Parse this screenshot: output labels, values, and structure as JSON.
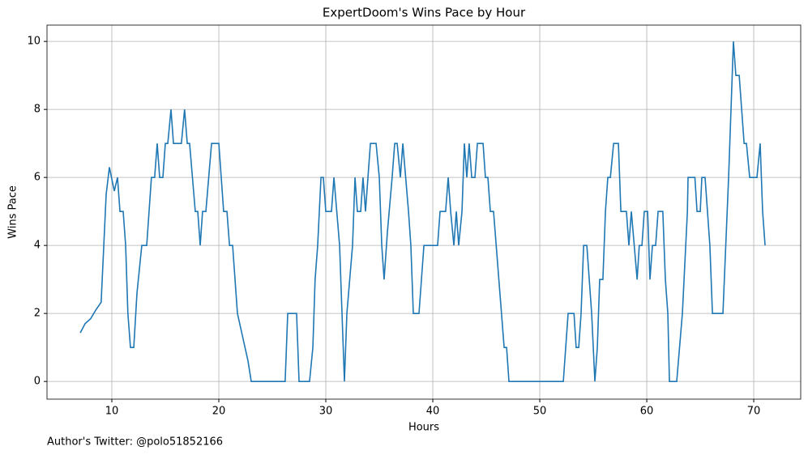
{
  "chart_data": {
    "type": "line",
    "title": "ExpertDoom's Wins Pace by Hour",
    "xlabel": "Hours",
    "ylabel": "Wins Pace",
    "footnote": "Author's Twitter: @polo51852166",
    "xlim": [
      3.94,
      74.39
    ],
    "ylim": [
      -0.52,
      10.48
    ],
    "xticks": [
      10,
      20,
      30,
      40,
      50,
      60,
      70
    ],
    "yticks": [
      0,
      2,
      4,
      6,
      8,
      10
    ],
    "grid": true,
    "x": [
      7.05,
      7.5,
      8.03,
      8.5,
      9.0,
      9.47,
      9.77,
      10.23,
      10.53,
      10.76,
      11.06,
      11.29,
      11.5,
      11.74,
      12.05,
      12.35,
      12.8,
      13.26,
      13.7,
      14.0,
      14.24,
      14.47,
      14.77,
      15.0,
      15.23,
      15.53,
      15.76,
      16.5,
      16.8,
      17.05,
      17.27,
      17.8,
      18.03,
      18.26,
      18.48,
      18.79,
      19.32,
      20.0,
      20.45,
      20.76,
      21.0,
      21.29,
      21.74,
      22.73,
      23.03,
      26.2,
      26.44,
      27.27,
      27.5,
      28.48,
      28.79,
      29.0,
      29.24,
      29.55,
      29.77,
      30.0,
      30.53,
      30.76,
      31.29,
      31.74,
      31.97,
      32.5,
      32.73,
      32.95,
      33.26,
      33.48,
      33.71,
      34.17,
      34.7,
      35.0,
      35.23,
      35.45,
      35.76,
      36.2,
      36.44,
      36.67,
      36.97,
      37.2,
      37.73,
      37.95,
      38.18,
      38.71,
      38.94,
      39.17,
      40.45,
      40.68,
      41.2,
      41.44,
      41.67,
      41.97,
      42.2,
      42.42,
      42.73,
      42.95,
      43.18,
      43.4,
      43.64,
      43.94,
      44.17,
      44.7,
      44.92,
      45.15,
      45.38,
      45.68,
      46.67,
      46.9,
      47.12,
      52.2,
      52.65,
      53.2,
      53.4,
      53.64,
      53.86,
      54.1,
      54.4,
      54.85,
      55.15,
      55.38,
      55.6,
      55.9,
      56.14,
      56.36,
      56.6,
      56.9,
      57.35,
      57.58,
      58.1,
      58.33,
      58.56,
      59.1,
      59.3,
      59.55,
      59.77,
      60.08,
      60.3,
      60.53,
      60.83,
      61.06,
      61.5,
      61.74,
      61.97,
      62.12,
      62.8,
      63.33,
      63.8,
      63.86,
      64.5,
      64.7,
      65.0,
      65.15,
      65.45,
      65.9,
      66.14,
      67.12,
      67.65,
      68.1,
      68.33,
      68.64,
      69.1,
      69.32,
      69.62,
      70.3,
      70.6,
      70.83,
      71.06
    ],
    "series": [
      {
        "name": "Wins Pace",
        "color": "#1f77b4",
        "values": [
          1.43,
          1.7,
          1.85,
          2.1,
          2.33,
          5.5,
          6.3,
          5.6,
          6,
          5,
          5,
          4,
          2,
          1,
          1,
          2.6,
          4,
          4,
          6,
          6,
          7,
          6,
          6,
          7,
          7,
          8,
          7,
          7,
          8,
          7,
          7,
          5,
          5,
          4,
          5,
          5,
          7,
          7,
          5,
          5,
          4,
          4,
          2,
          0.6,
          0,
          0,
          2,
          2,
          0,
          0,
          1,
          3,
          4,
          6,
          6,
          5,
          5,
          6,
          4,
          0,
          2,
          4,
          6,
          5,
          5,
          6,
          5,
          7,
          7,
          6,
          4,
          3,
          4.4,
          6,
          7,
          7,
          6,
          7,
          5,
          4,
          2,
          2,
          3,
          4,
          4,
          5,
          5,
          6,
          5,
          4,
          5,
          4,
          5,
          7,
          6,
          7,
          6,
          6,
          7,
          7,
          6,
          6,
          5,
          5,
          1,
          1,
          0,
          0,
          2,
          2,
          1,
          1,
          2,
          4,
          4,
          2,
          0,
          1,
          3,
          3,
          5,
          6,
          6,
          7,
          7,
          5,
          5,
          4,
          5,
          3,
          4,
          4,
          5,
          5,
          3,
          4,
          4,
          5,
          5,
          3,
          2,
          0,
          0,
          2,
          5,
          6,
          6,
          5,
          5,
          6,
          6,
          4,
          2,
          2,
          6,
          10,
          9,
          9,
          7,
          7,
          6,
          6,
          7,
          5,
          4
        ]
      }
    ]
  }
}
